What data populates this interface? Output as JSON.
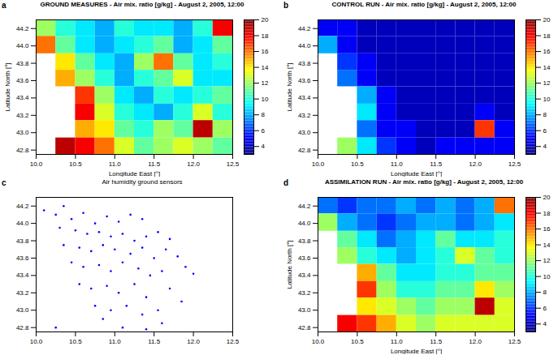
{
  "chart_data": [
    {
      "type": "heatmap",
      "panel": "a",
      "title": "GROUND MEASURES - Air mix. ratio [g/kg]  -  August 2, 2005, 12:00",
      "x_label": "Longitude East [°]",
      "y_label": "Latitude North [°]",
      "xlim": [
        10,
        12.5
      ],
      "ylim": [
        42.75,
        44.3
      ],
      "xticks": [
        10,
        10.5,
        11,
        11.5,
        12,
        12.5
      ],
      "yticks": [
        42.8,
        43,
        43.2,
        43.4,
        43.6,
        43.8,
        44,
        44.2
      ],
      "x_edges": [
        10,
        10.25,
        10.5,
        10.75,
        11,
        11.25,
        11.5,
        11.75,
        12,
        12.25,
        12.5
      ],
      "y_edges": [
        44.3,
        44.11,
        43.91,
        43.72,
        43.53,
        43.33,
        43.14,
        42.94,
        42.75
      ],
      "cells": [
        [
          12,
          10,
          9,
          8,
          10,
          9,
          9,
          8,
          10,
          18
        ],
        [
          16,
          11,
          9,
          8,
          9,
          10,
          11,
          8,
          9,
          11
        ],
        [
          null,
          14,
          11,
          9,
          8,
          12,
          16,
          11,
          9,
          10
        ],
        [
          null,
          15,
          12,
          10,
          8,
          10,
          11,
          13,
          9,
          9
        ],
        [
          null,
          null,
          17,
          12,
          9,
          8,
          10,
          9,
          10,
          11
        ],
        [
          null,
          null,
          18,
          13,
          10,
          9,
          8,
          10,
          13,
          10
        ],
        [
          null,
          null,
          15,
          14,
          11,
          10,
          12,
          11,
          19,
          12
        ],
        [
          null,
          19,
          18,
          16,
          13,
          11,
          12,
          13,
          12,
          11
        ]
      ],
      "colorbar": {
        "range": [
          3,
          20
        ],
        "ticks": [
          4,
          6,
          8,
          10,
          12,
          14,
          16,
          18,
          20
        ]
      }
    },
    {
      "type": "heatmap",
      "panel": "b",
      "title": "CONTROL RUN - Air mix. ratio [g/kg]  -  August 2, 2005, 12:00",
      "x_label": "Longitude East [°]",
      "y_label": "Latitude North [°]",
      "xlim": [
        10,
        12.5
      ],
      "ylim": [
        42.75,
        44.3
      ],
      "xticks": [
        10,
        10.5,
        11,
        11.5,
        12,
        12.5
      ],
      "yticks": [
        42.8,
        43,
        43.2,
        43.4,
        43.6,
        43.8,
        44,
        44.2
      ],
      "x_edges": [
        10,
        10.25,
        10.5,
        10.75,
        11,
        11.25,
        11.5,
        11.75,
        12,
        12.25,
        12.5
      ],
      "y_edges": [
        44.3,
        44.11,
        43.91,
        43.72,
        43.53,
        43.33,
        43.14,
        42.94,
        42.75
      ],
      "cells": [
        [
          5,
          5,
          4,
          4,
          4,
          4,
          4,
          4,
          4,
          4
        ],
        [
          8,
          5,
          4,
          4,
          4,
          4,
          4,
          4,
          4,
          4
        ],
        [
          null,
          6,
          5,
          4,
          4,
          4,
          4,
          4,
          4,
          4
        ],
        [
          null,
          7,
          5,
          4,
          4,
          4,
          4,
          4,
          4,
          4
        ],
        [
          null,
          null,
          8,
          5,
          4,
          4,
          4,
          4,
          4,
          4
        ],
        [
          null,
          null,
          9,
          5,
          4,
          4,
          4,
          4,
          5,
          4
        ],
        [
          null,
          null,
          7,
          5,
          5,
          4,
          4,
          4,
          17,
          5
        ],
        [
          null,
          12,
          9,
          6,
          5,
          4,
          5,
          5,
          5,
          5
        ]
      ],
      "colorbar": {
        "range": [
          3,
          20
        ],
        "ticks": [
          4,
          6,
          8,
          10,
          12,
          14,
          16,
          18,
          20
        ]
      }
    },
    {
      "type": "scatter",
      "panel": "c",
      "title": "Air humidity ground sensors",
      "xlim": [
        10,
        12.5
      ],
      "ylim": [
        42.75,
        44.3
      ],
      "xticks": [
        10,
        10.5,
        11,
        11.5,
        12,
        12.5
      ],
      "yticks": [
        42.8,
        43,
        43.2,
        43.4,
        43.6,
        43.8,
        44,
        44.2
      ],
      "color": "#0000ff",
      "x": [
        10.1,
        10.25,
        10.35,
        10.45,
        10.6,
        10.75,
        10.9,
        11.05,
        11.2,
        11.35,
        10.3,
        10.5,
        10.65,
        10.8,
        10.95,
        11.1,
        11.25,
        11.4,
        11.55,
        11.7,
        10.35,
        10.55,
        10.7,
        10.85,
        11.0,
        11.2,
        11.35,
        11.5,
        11.65,
        11.8,
        10.45,
        10.6,
        10.8,
        10.95,
        11.1,
        11.3,
        11.45,
        11.6,
        11.9,
        12.0,
        10.55,
        10.7,
        10.9,
        11.05,
        11.25,
        11.4,
        11.7,
        11.85,
        10.75,
        10.95,
        11.15,
        11.35,
        11.55,
        11.6,
        10.85,
        11.1,
        11.4,
        10.25
      ],
      "y": [
        44.15,
        44.1,
        44.2,
        44.05,
        44.12,
        44.0,
        44.08,
        44.02,
        44.1,
        44.05,
        43.95,
        43.92,
        43.88,
        43.9,
        43.85,
        43.88,
        43.8,
        43.85,
        43.9,
        43.82,
        43.75,
        43.72,
        43.68,
        43.75,
        43.7,
        43.65,
        43.72,
        43.6,
        43.7,
        43.62,
        43.55,
        43.5,
        43.52,
        43.45,
        43.55,
        43.48,
        43.4,
        43.45,
        43.5,
        43.42,
        43.3,
        43.25,
        43.28,
        43.2,
        43.3,
        43.15,
        43.25,
        43.1,
        43.05,
        43.0,
        43.05,
        42.95,
        43.0,
        42.85,
        42.9,
        42.8,
        42.78,
        42.8
      ]
    },
    {
      "type": "heatmap",
      "panel": "d",
      "title": "ASSIMILATION RUN - Air mix. ratio [g/kg]  -  August 2, 2005, 12:00",
      "x_label": "Longitude East [°]",
      "y_label": "Latitude North [°]",
      "xlim": [
        10,
        12.5
      ],
      "ylim": [
        42.75,
        44.3
      ],
      "xticks": [
        10,
        10.5,
        11,
        11.5,
        12,
        12.5
      ],
      "yticks": [
        42.8,
        43,
        43.2,
        43.4,
        43.6,
        43.8,
        44,
        44.2
      ],
      "x_edges": [
        10,
        10.25,
        10.5,
        10.75,
        11,
        11.25,
        11.5,
        11.75,
        12,
        12.25,
        12.5
      ],
      "y_edges": [
        44.3,
        44.11,
        43.91,
        43.72,
        43.53,
        43.33,
        43.14,
        42.94,
        42.75
      ],
      "cells": [
        [
          7,
          6,
          7,
          7,
          8,
          7,
          8,
          7,
          8,
          16
        ],
        [
          12,
          8,
          7,
          6,
          7,
          8,
          8,
          7,
          8,
          9
        ],
        [
          null,
          11,
          9,
          7,
          8,
          9,
          11,
          9,
          9,
          10
        ],
        [
          null,
          12,
          10,
          9,
          8,
          9,
          10,
          13,
          11,
          10
        ],
        [
          null,
          null,
          15,
          11,
          9,
          9,
          10,
          10,
          11,
          11
        ],
        [
          null,
          null,
          17,
          12,
          10,
          10,
          11,
          11,
          14,
          12
        ],
        [
          null,
          null,
          14,
          13,
          12,
          11,
          12,
          12,
          19,
          13
        ],
        [
          null,
          18,
          17,
          15,
          13,
          12,
          13,
          13,
          13,
          13
        ]
      ],
      "colorbar": {
        "range": [
          3,
          20
        ],
        "ticks": [
          4,
          6,
          8,
          10,
          12,
          14,
          16,
          18,
          20
        ]
      }
    }
  ]
}
